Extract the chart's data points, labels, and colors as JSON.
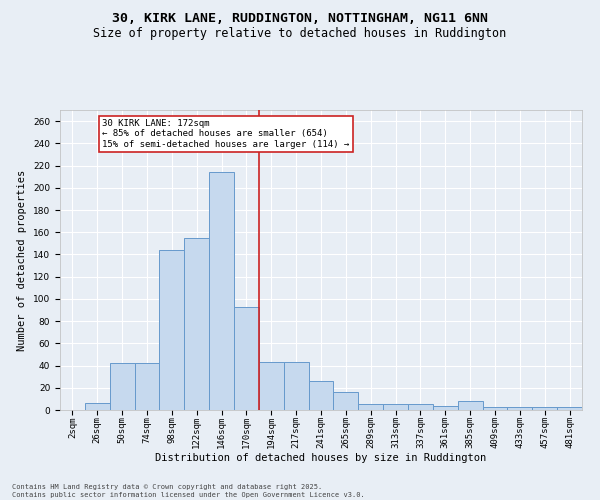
{
  "title_line1": "30, KIRK LANE, RUDDINGTON, NOTTINGHAM, NG11 6NN",
  "title_line2": "Size of property relative to detached houses in Ruddington",
  "xlabel": "Distribution of detached houses by size in Ruddington",
  "ylabel": "Number of detached properties",
  "bin_labels": [
    "2sqm",
    "26sqm",
    "50sqm",
    "74sqm",
    "98sqm",
    "122sqm",
    "146sqm",
    "170sqm",
    "194sqm",
    "217sqm",
    "241sqm",
    "265sqm",
    "289sqm",
    "313sqm",
    "337sqm",
    "361sqm",
    "385sqm",
    "409sqm",
    "433sqm",
    "457sqm",
    "481sqm"
  ],
  "bar_values": [
    0,
    6,
    42,
    42,
    144,
    155,
    214,
    93,
    43,
    43,
    26,
    16,
    5,
    5,
    5,
    4,
    8,
    3,
    3,
    3,
    3
  ],
  "bar_color": "#c6d9ee",
  "bar_edge_color": "#6699cc",
  "vline_x": 7.5,
  "vline_color": "#cc2222",
  "annotation_text": "30 KIRK LANE: 172sqm\n← 85% of detached houses are smaller (654)\n15% of semi-detached houses are larger (114) →",
  "annotation_box_facecolor": "#ffffff",
  "annotation_box_edgecolor": "#cc2222",
  "ylim": [
    0,
    270
  ],
  "yticks": [
    0,
    20,
    40,
    60,
    80,
    100,
    120,
    140,
    160,
    180,
    200,
    220,
    240,
    260
  ],
  "background_color": "#e8eef5",
  "grid_color": "#ffffff",
  "footer_line1": "Contains HM Land Registry data © Crown copyright and database right 2025.",
  "footer_line2": "Contains public sector information licensed under the Open Government Licence v3.0.",
  "title_fontsize": 9.5,
  "subtitle_fontsize": 8.5,
  "axis_label_fontsize": 7.5,
  "tick_fontsize": 6.5,
  "annotation_fontsize": 6.5,
  "footer_fontsize": 5.0
}
